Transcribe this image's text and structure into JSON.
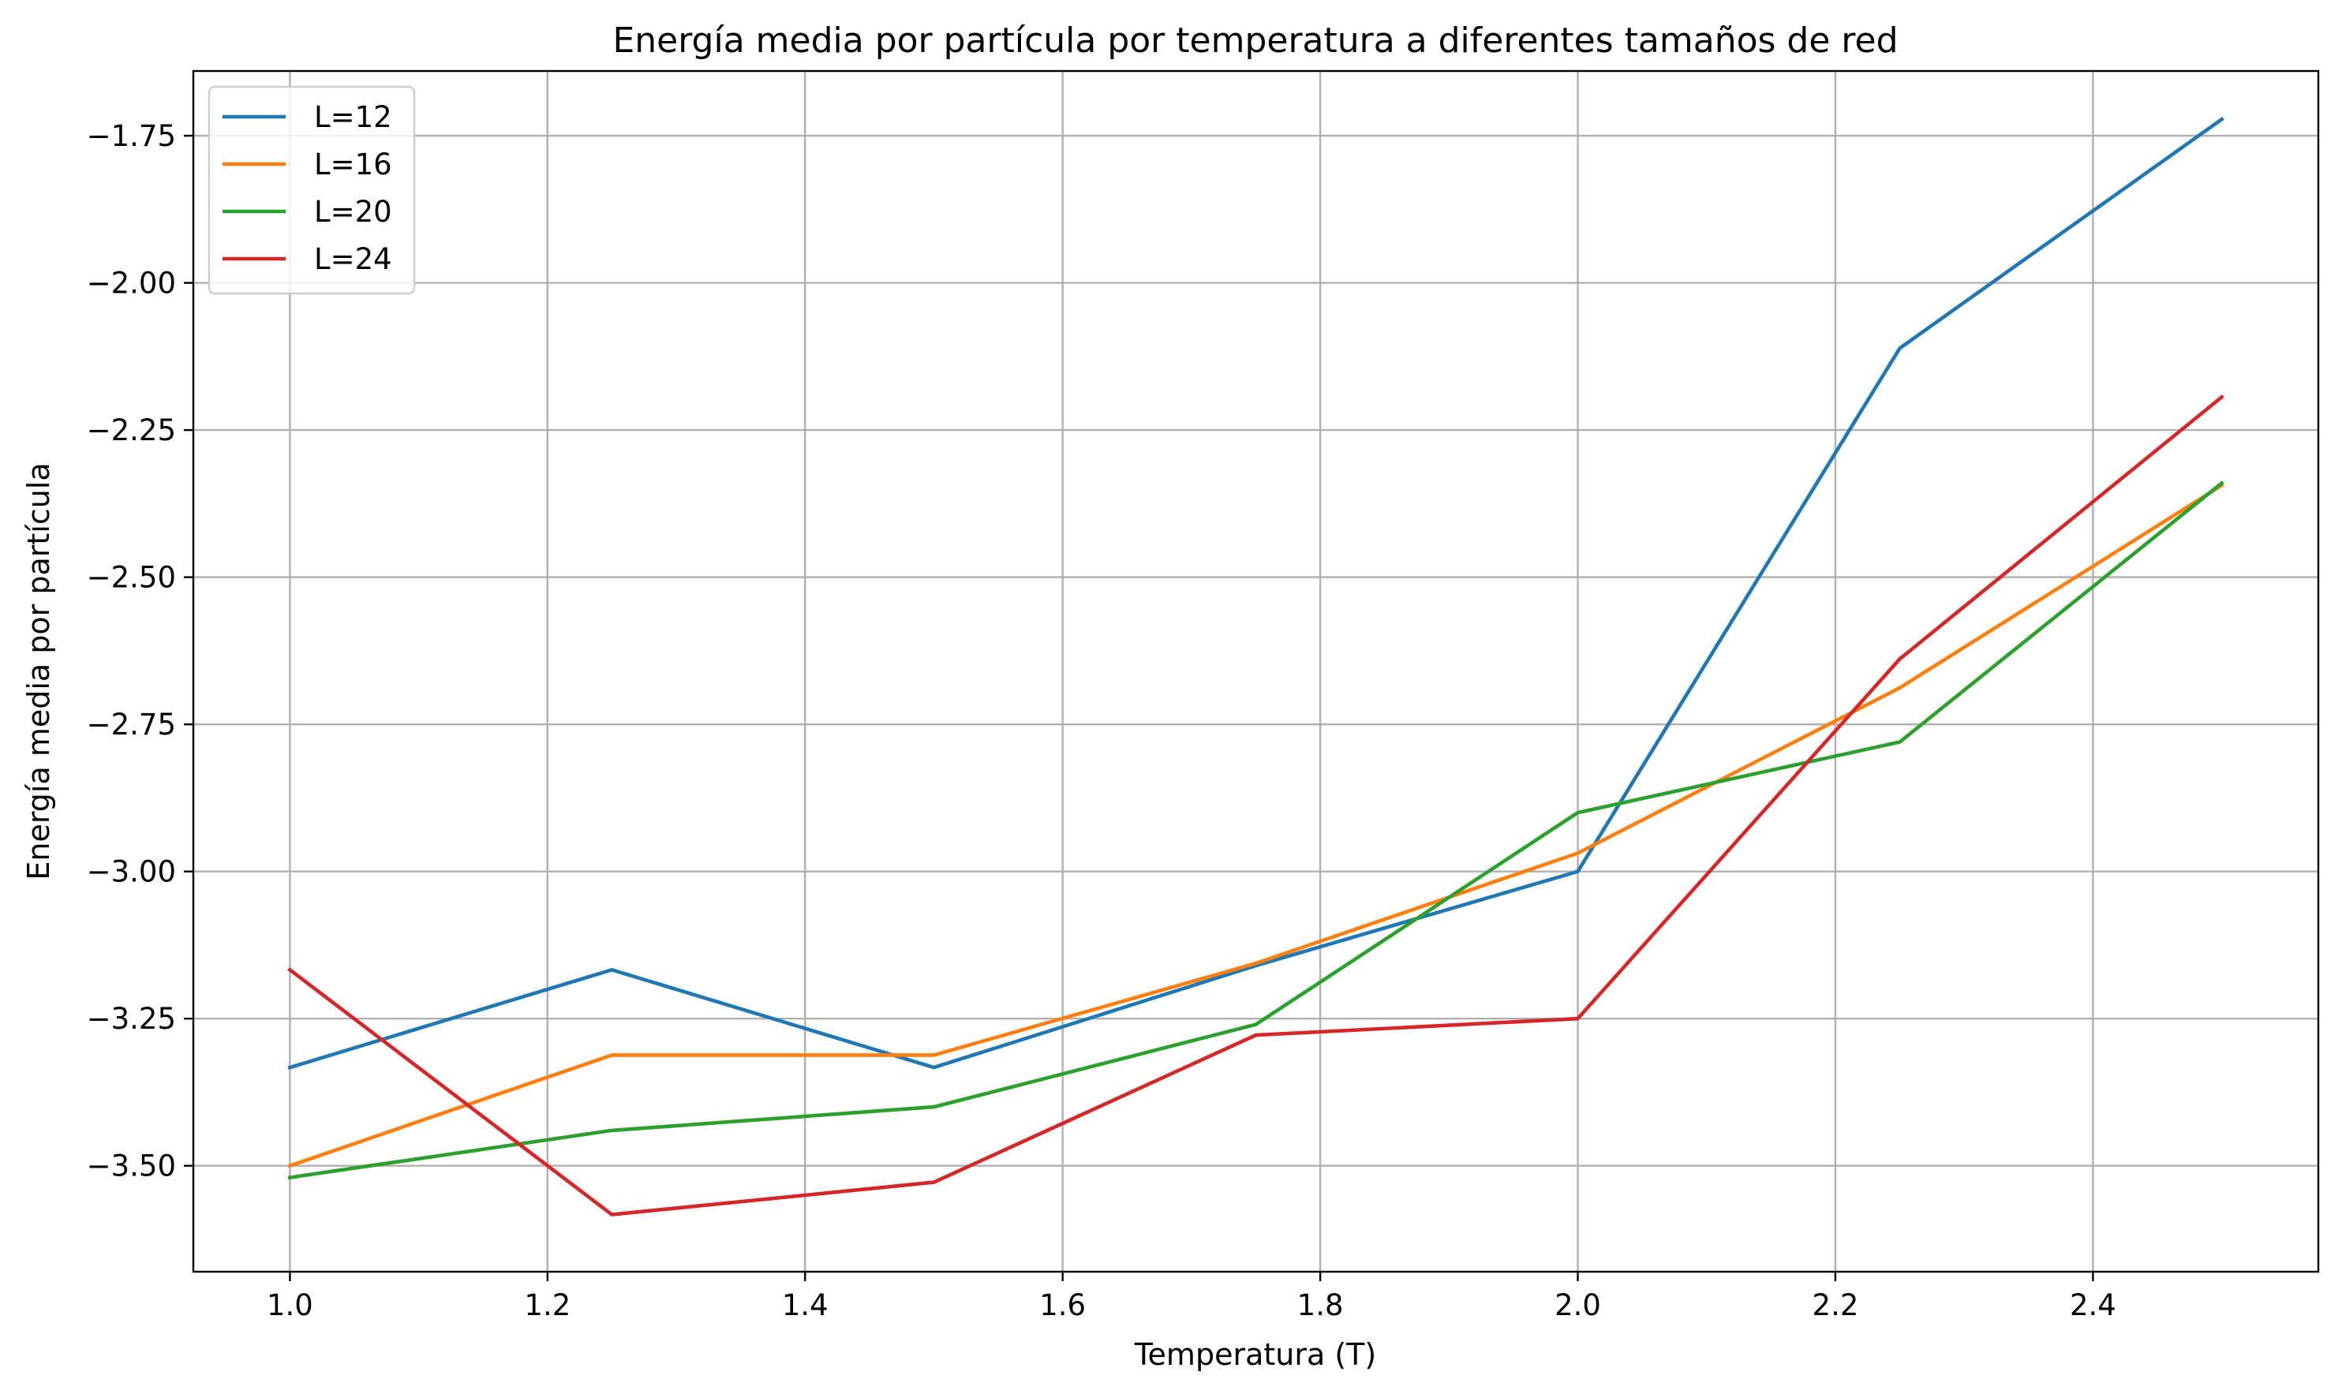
{
  "chart_data": {
    "type": "line",
    "title": "Energía media por partícula por temperatura a diferentes tamaños de red",
    "xlabel": "Temperatura (T)",
    "ylabel": "Energía media por partícula",
    "x": [
      1.0,
      1.25,
      1.5,
      1.75,
      2.0,
      2.25,
      2.5
    ],
    "xlim": [
      0.925,
      2.575
    ],
    "ylim": [
      -3.68,
      -1.64
    ],
    "xticks": [
      1.0,
      1.2,
      1.4,
      1.6,
      1.8,
      2.0,
      2.2,
      2.4
    ],
    "xtick_labels": [
      "1.0",
      "1.2",
      "1.4",
      "1.6",
      "1.8",
      "2.0",
      "2.2",
      "2.4"
    ],
    "yticks": [
      -3.5,
      -3.25,
      -3.0,
      -2.75,
      -2.5,
      -2.25,
      -2.0,
      -1.75
    ],
    "ytick_labels": [
      "−3.50",
      "−3.25",
      "−3.00",
      "−2.75",
      "−2.50",
      "−2.25",
      "−2.00",
      "−1.75"
    ],
    "grid": true,
    "legend_position": "top-left",
    "series": [
      {
        "name": "L=12",
        "color": "#1f77b4",
        "values": [
          -3.333,
          -3.167,
          -3.333,
          -3.16,
          -3.0,
          -2.111,
          -1.722
        ]
      },
      {
        "name": "L=16",
        "color": "#ff7f0e",
        "values": [
          -3.5,
          -3.312,
          -3.312,
          -3.156,
          -2.969,
          -2.688,
          -2.344
        ]
      },
      {
        "name": "L=20",
        "color": "#2ca02c",
        "values": [
          -3.52,
          -3.44,
          -3.4,
          -3.26,
          -2.9,
          -2.78,
          -2.34
        ]
      },
      {
        "name": "L=24",
        "color": "#d62728",
        "values": [
          -3.167,
          -3.583,
          -3.528,
          -3.278,
          -3.25,
          -2.639,
          -2.194
        ]
      }
    ]
  }
}
